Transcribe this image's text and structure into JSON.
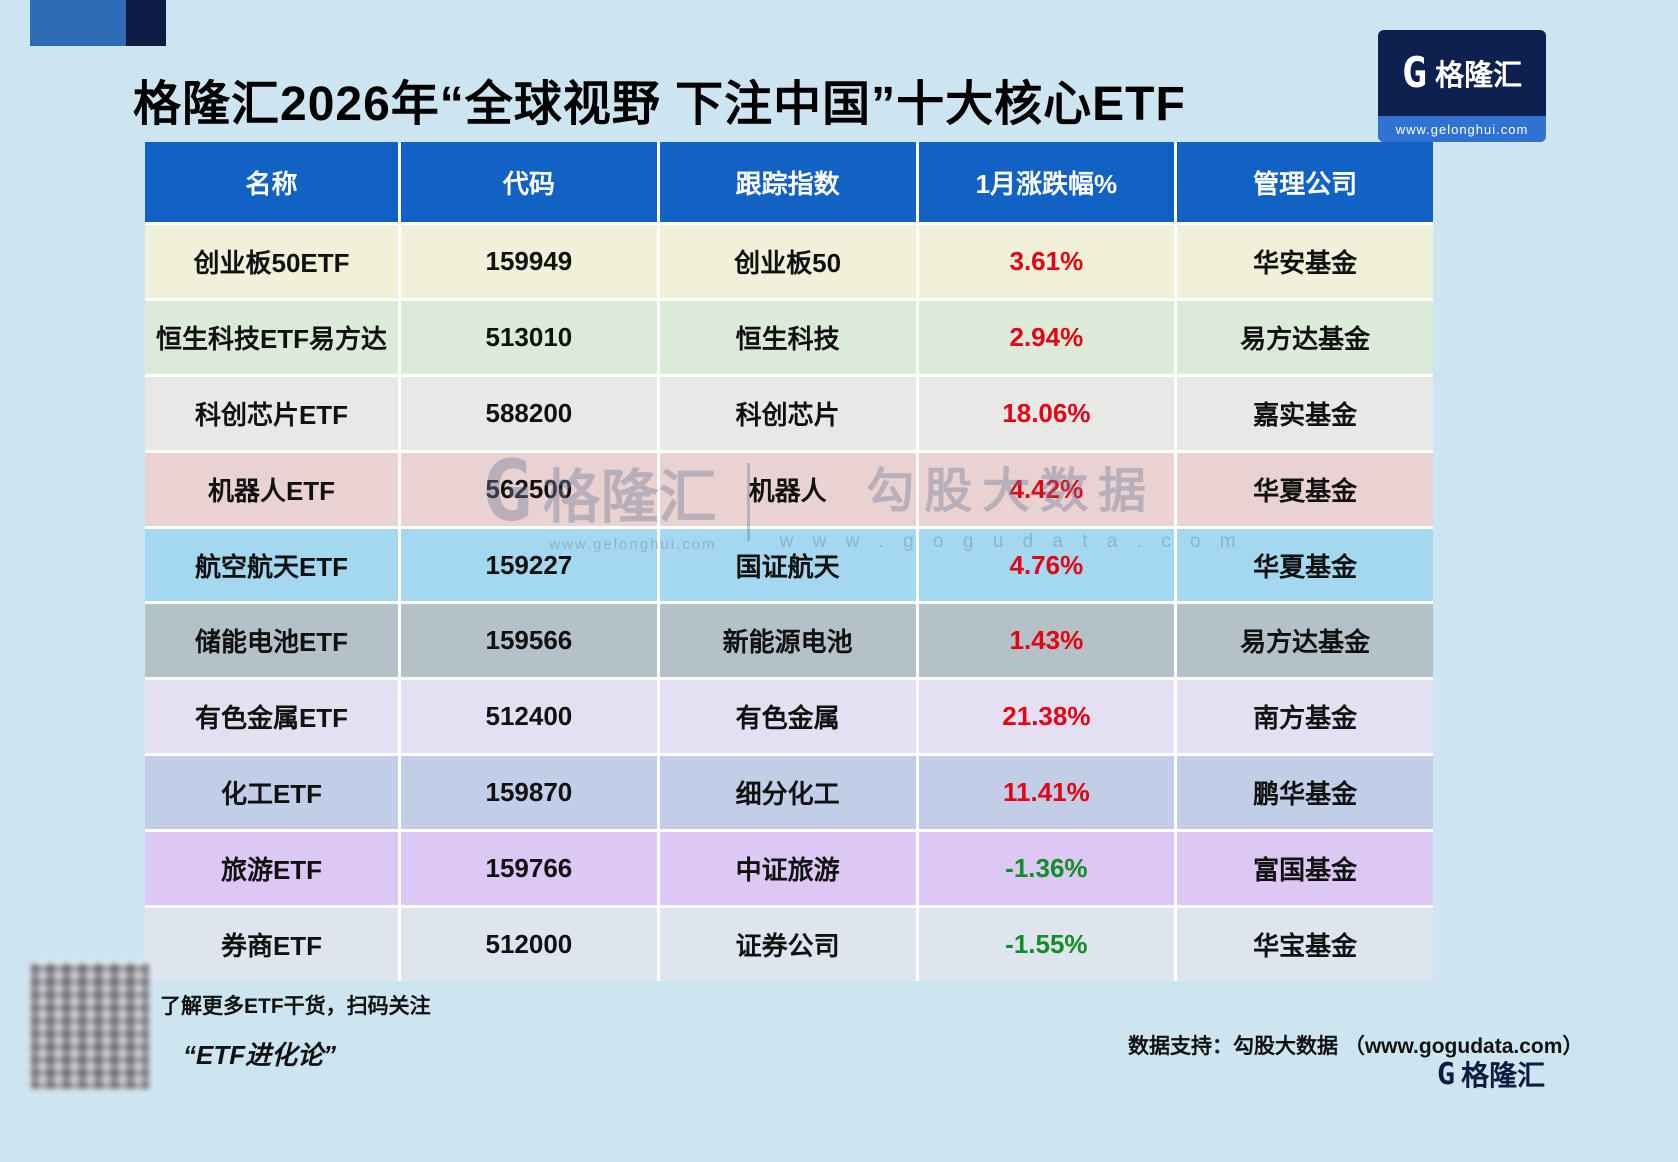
{
  "page": {
    "title": "格隆汇2026年“全球视野 下注中国”十大核心ETF"
  },
  "logo": {
    "g_glyph": "G",
    "brand": "格隆汇",
    "url": "www.gelonghui.com"
  },
  "watermark": {
    "g_glyph": "G",
    "brand": "格隆汇",
    "brand_url": "www.gelonghui.com",
    "partner": "勾股大数据",
    "partner_url": "w w w . g o g u d a t a . c o m"
  },
  "footer": {
    "qr_caption": "了解更多ETF干货，扫码关注",
    "qr_title": "“ETF进化论”",
    "data_support": "数据支持：勾股大数据 （www.gogudata.com）",
    "corner_g": "G",
    "corner_brand": "格隆汇"
  },
  "colors": {
    "page_bg": "#cde4f1",
    "header_bg": "#1261c4",
    "positive": "#e60012",
    "negative": "#0f8f25"
  },
  "chart_data": {
    "type": "table",
    "title": "格隆汇2026年“全球视野 下注中国”十大核心ETF",
    "columns": [
      "名称",
      "代码",
      "跟踪指数",
      "1月涨跌幅%",
      "管理公司"
    ],
    "rows": [
      {
        "name": "创业板50ETF",
        "code": "159949",
        "index": "创业板50",
        "change": "3.61%",
        "company": "华安基金",
        "bg": "#f0f1d8"
      },
      {
        "name": "恒生科技ETF易方达",
        "code": "513010",
        "index": "恒生科技",
        "change": "2.94%",
        "company": "易方达基金",
        "bg": "#dcebd9"
      },
      {
        "name": "科创芯片ETF",
        "code": "588200",
        "index": "科创芯片",
        "change": "18.06%",
        "company": "嘉实基金",
        "bg": "#e8e8e6"
      },
      {
        "name": "机器人ETF",
        "code": "562500",
        "index": "机器人",
        "change": "4.42%",
        "company": "华夏基金",
        "bg": "#ebd2d2"
      },
      {
        "name": "航空航天ETF",
        "code": "159227",
        "index": "国证航天",
        "change": "4.76%",
        "company": "华夏基金",
        "bg": "#a4d7f0"
      },
      {
        "name": "储能电池ETF",
        "code": "159566",
        "index": "新能源电池",
        "change": "1.43%",
        "company": "易方达基金",
        "bg": "#b5c1c9"
      },
      {
        "name": "有色金属ETF",
        "code": "512400",
        "index": "有色金属",
        "change": "21.38%",
        "company": "南方基金",
        "bg": "#e5dff4"
      },
      {
        "name": "化工ETF",
        "code": "159870",
        "index": "细分化工",
        "change": "11.41%",
        "company": "鹏华基金",
        "bg": "#c2cde7"
      },
      {
        "name": "旅游ETF",
        "code": "159766",
        "index": "中证旅游",
        "change": "-1.36%",
        "company": "富国基金",
        "bg": "#dcc7f5"
      },
      {
        "name": "券商ETF",
        "code": "512000",
        "index": "证券公司",
        "change": "-1.55%",
        "company": "华宝基金",
        "bg": "#dee5ee"
      }
    ]
  }
}
